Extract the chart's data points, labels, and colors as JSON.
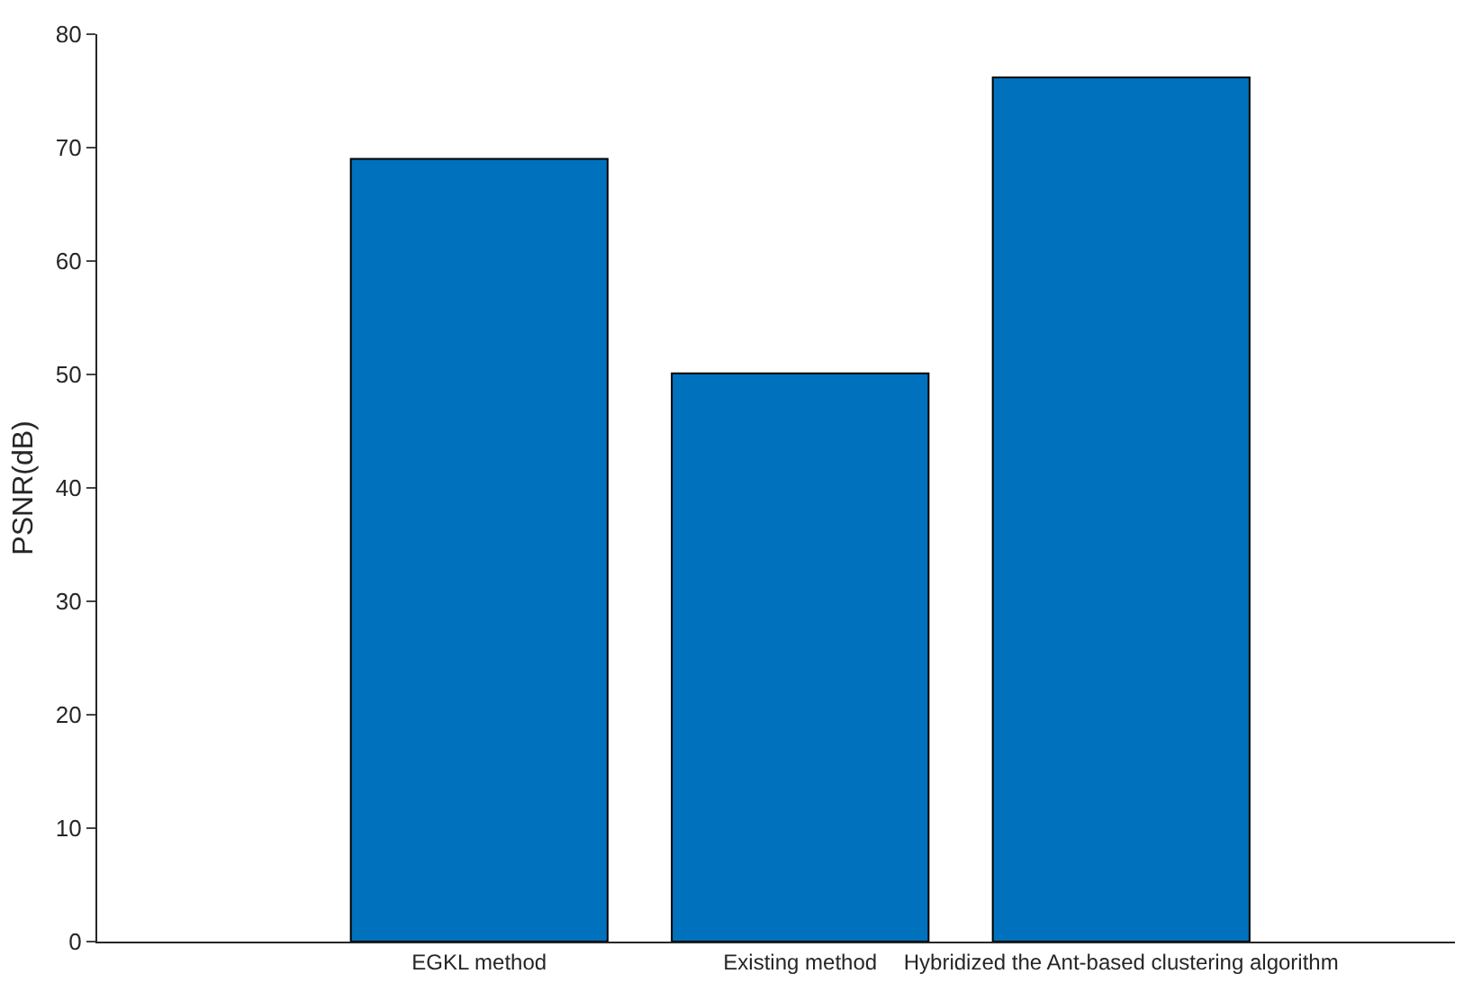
{
  "chart_data": {
    "type": "bar",
    "ylabel": "PSNR(dB)",
    "categories": [
      "EGKL method",
      "Existing method",
      "Hybridized the Ant-based clustering algorithm"
    ],
    "values": [
      69,
      50.1,
      76.2
    ],
    "color": "#0072bd",
    "ylim": [
      0,
      80
    ],
    "yticks": [
      0,
      10,
      20,
      30,
      40,
      50,
      60,
      70,
      80
    ]
  }
}
